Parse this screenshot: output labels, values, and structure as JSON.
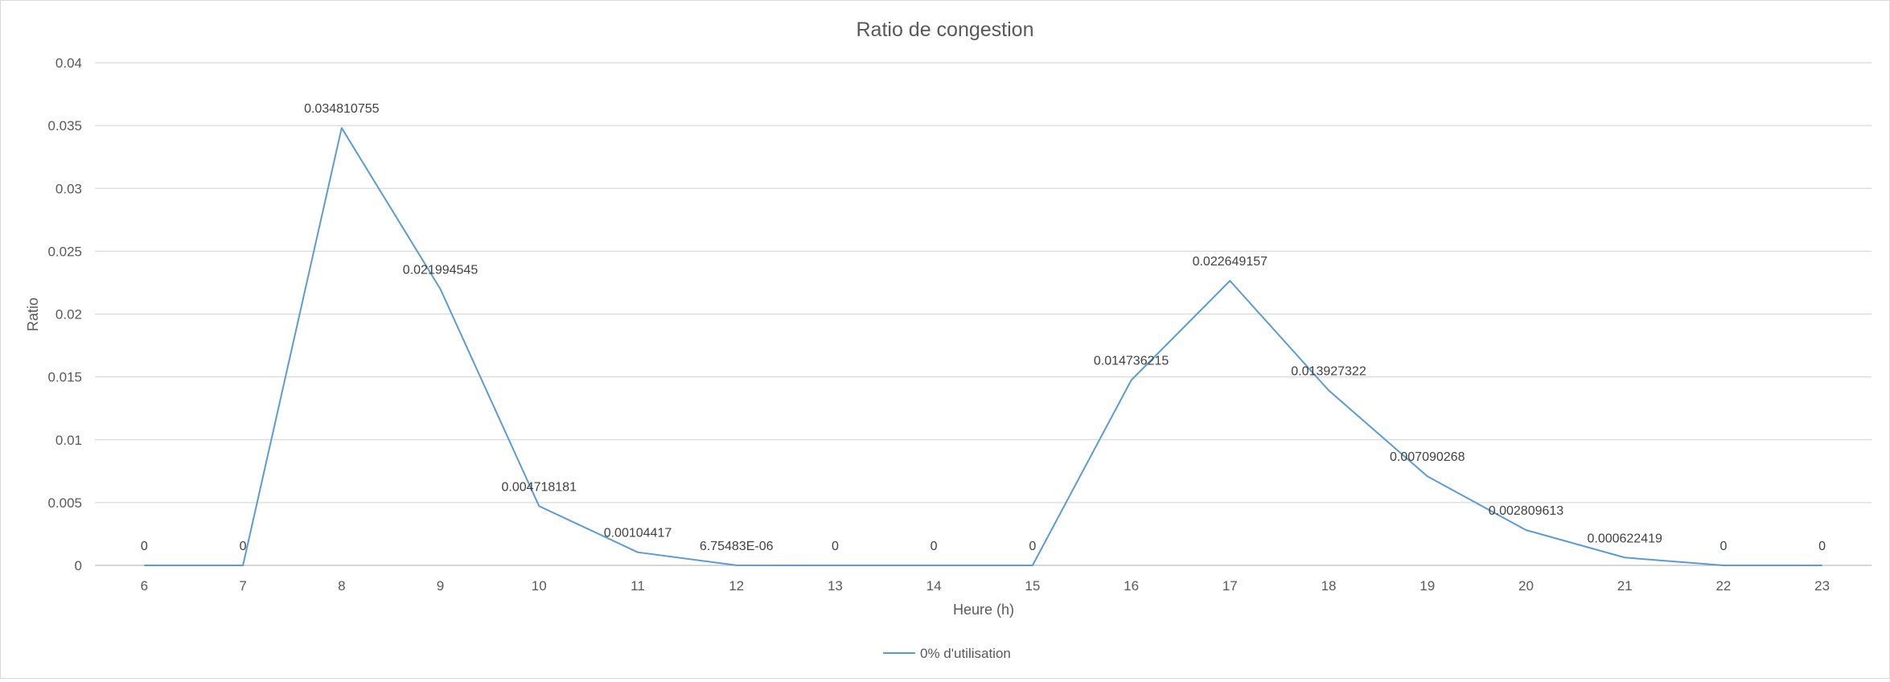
{
  "chart_data": {
    "type": "line",
    "title": "Ratio de congestion",
    "xlabel": "Heure (h)",
    "ylabel": "Ratio",
    "categories": [
      "6",
      "7",
      "8",
      "9",
      "10",
      "11",
      "12",
      "13",
      "14",
      "15",
      "16",
      "17",
      "18",
      "19",
      "20",
      "21",
      "22",
      "23"
    ],
    "ylim": [
      0,
      0.04
    ],
    "yticks": [
      "0",
      "0.005",
      "0.01",
      "0.015",
      "0.02",
      "0.025",
      "0.03",
      "0.035",
      "0.04"
    ],
    "grid": true,
    "legend_position": "bottom",
    "series": [
      {
        "name": "0% d'utilisation",
        "color": "#5B9BD5",
        "values": [
          0,
          0,
          0.034810755,
          0.021994545,
          0.004718181,
          0.00104417,
          6.75483e-06,
          0,
          0,
          0,
          0.014736215,
          0.022649157,
          0.013927322,
          0.007090268,
          0.002809613,
          0.000622419,
          0,
          0
        ],
        "labels": [
          "0",
          "0",
          "0.034810755",
          "0.021994545",
          "0.004718181",
          "0.00104417",
          "6.75483E-06",
          "0",
          "0",
          "0",
          "0.014736215",
          "0.022649157",
          "0.013927322",
          "0.007090268",
          "0.002809613",
          "0.000622419",
          "0",
          "0"
        ]
      }
    ]
  }
}
